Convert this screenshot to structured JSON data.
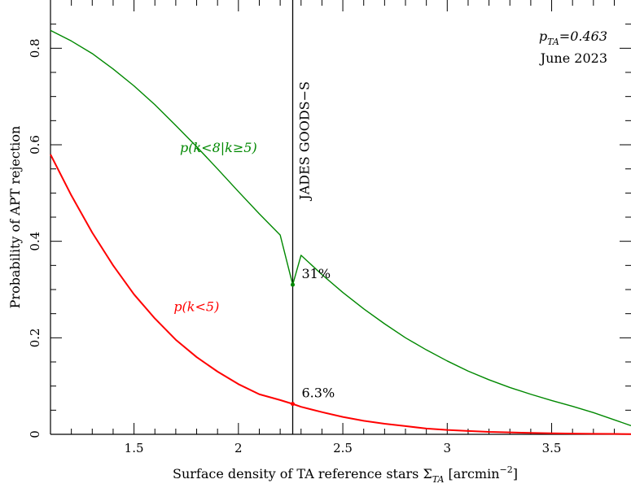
{
  "chart_data": {
    "type": "line",
    "xlabel": "Surface density of TA reference stars Σ",
    "xlabel_sub": "TA",
    "xlabel_unit_pre": " [arcmin",
    "xlabel_unit_sup": "−2",
    "xlabel_unit_post": "]",
    "ylabel": "Probability of APT rejection",
    "xlim": [
      1.1,
      3.88
    ],
    "ylim": [
      0,
      0.9
    ],
    "x_ticks": [
      {
        "value": 1.5,
        "label": "1.5"
      },
      {
        "value": 2,
        "label": "2"
      },
      {
        "value": 2.5,
        "label": "2.5"
      },
      {
        "value": 3,
        "label": "3"
      },
      {
        "value": 3.5,
        "label": "3.5"
      }
    ],
    "y_ticks": [
      {
        "value": 0,
        "label": "0"
      },
      {
        "value": 0.2,
        "label": "0.2"
      },
      {
        "value": 0.4,
        "label": "0.4"
      },
      {
        "value": 0.6,
        "label": "0.6"
      },
      {
        "value": 0.8,
        "label": "0.8"
      }
    ],
    "series": [
      {
        "name": "p(k<8|k≥5)",
        "color": "#008800",
        "x": [
          1.1,
          1.2,
          1.3,
          1.4,
          1.5,
          1.6,
          1.7,
          1.8,
          1.9,
          2.0,
          2.1,
          2.2,
          2.26,
          2.3,
          2.4,
          2.5,
          2.6,
          2.7,
          2.8,
          2.9,
          3.0,
          3.1,
          3.2,
          3.3,
          3.4,
          3.5,
          3.6,
          3.7,
          3.8,
          3.88
        ],
        "y": [
          0.837,
          0.815,
          0.789,
          0.757,
          0.722,
          0.683,
          0.64,
          0.596,
          0.55,
          0.503,
          0.457,
          0.413,
          0.31,
          0.371,
          0.331,
          0.294,
          0.26,
          0.229,
          0.2,
          0.175,
          0.152,
          0.131,
          0.113,
          0.097,
          0.083,
          0.07,
          0.058,
          0.045,
          0.03,
          0.018
        ]
      },
      {
        "name": "p(k<5)",
        "color": "#ff0000",
        "x": [
          1.1,
          1.2,
          1.3,
          1.4,
          1.5,
          1.6,
          1.7,
          1.8,
          1.9,
          2.0,
          2.1,
          2.2,
          2.26,
          2.3,
          2.4,
          2.5,
          2.6,
          2.7,
          2.8,
          2.9,
          3.0,
          3.1,
          3.2,
          3.3,
          3.4,
          3.5,
          3.6,
          3.7,
          3.8,
          3.88
        ],
        "y": [
          0.58,
          0.495,
          0.418,
          0.35,
          0.29,
          0.24,
          0.196,
          0.16,
          0.13,
          0.104,
          0.083,
          0.071,
          0.063,
          0.057,
          0.046,
          0.036,
          0.028,
          0.022,
          0.017,
          0.012,
          0.009,
          0.007,
          0.005,
          0.004,
          0.003,
          0.002,
          0.0015,
          0.001,
          0.0008,
          0.0005
        ]
      }
    ],
    "vline": {
      "x": 2.26,
      "label": "JADES GOODS−S"
    },
    "markers": [
      {
        "x": 2.26,
        "y": 0.31,
        "label": "31%",
        "color": "#008800"
      },
      {
        "x": 2.26,
        "y": 0.063,
        "label": "6.3%",
        "color": "#ff0000"
      }
    ],
    "series_labels": [
      {
        "text": "p(k<8|k≥5)",
        "color": "#008800",
        "x": 1.72,
        "y": 0.585
      },
      {
        "text": "p(k<5)",
        "color": "#ff0000",
        "x": 1.69,
        "y": 0.255
      }
    ],
    "annotation": {
      "p_symbol": "p",
      "p_sub": "TA",
      "p_value": "=0.463",
      "date": "June 2023"
    },
    "grid": false
  }
}
